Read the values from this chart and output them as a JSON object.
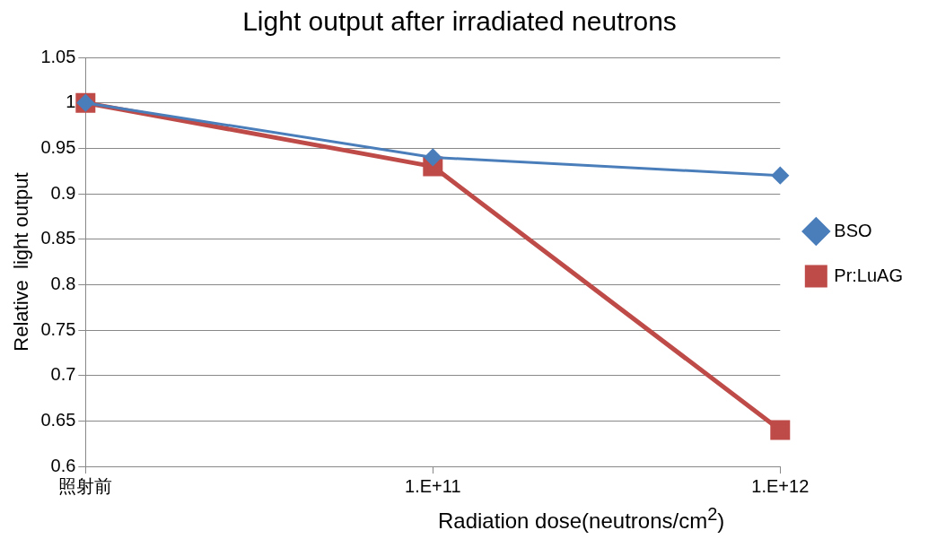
{
  "chart_data": {
    "type": "line",
    "title": "Light output after irradiated neutrons",
    "xlabel": "Radiation dose(neutrons/cm$^{2}$)",
    "ylabel": "Relative  light output",
    "categories": [
      "照射前",
      "1.E+11",
      "1.E+12"
    ],
    "ylim": [
      0.6,
      1.05
    ],
    "yticks": [
      0.6,
      0.65,
      0.7,
      0.75,
      0.8,
      0.85,
      0.9,
      0.95,
      1,
      1.05
    ],
    "grid": "y",
    "legend": "right",
    "line_style": "solid",
    "series": [
      {
        "name": "BSO",
        "color": "#4a7ebb",
        "marker": "diamond",
        "values": [
          1,
          0.94,
          0.92
        ]
      },
      {
        "name": "Pr:LuAG",
        "color": "#be4b48",
        "marker": "square",
        "values": [
          1,
          0.93,
          0.64
        ]
      }
    ]
  }
}
